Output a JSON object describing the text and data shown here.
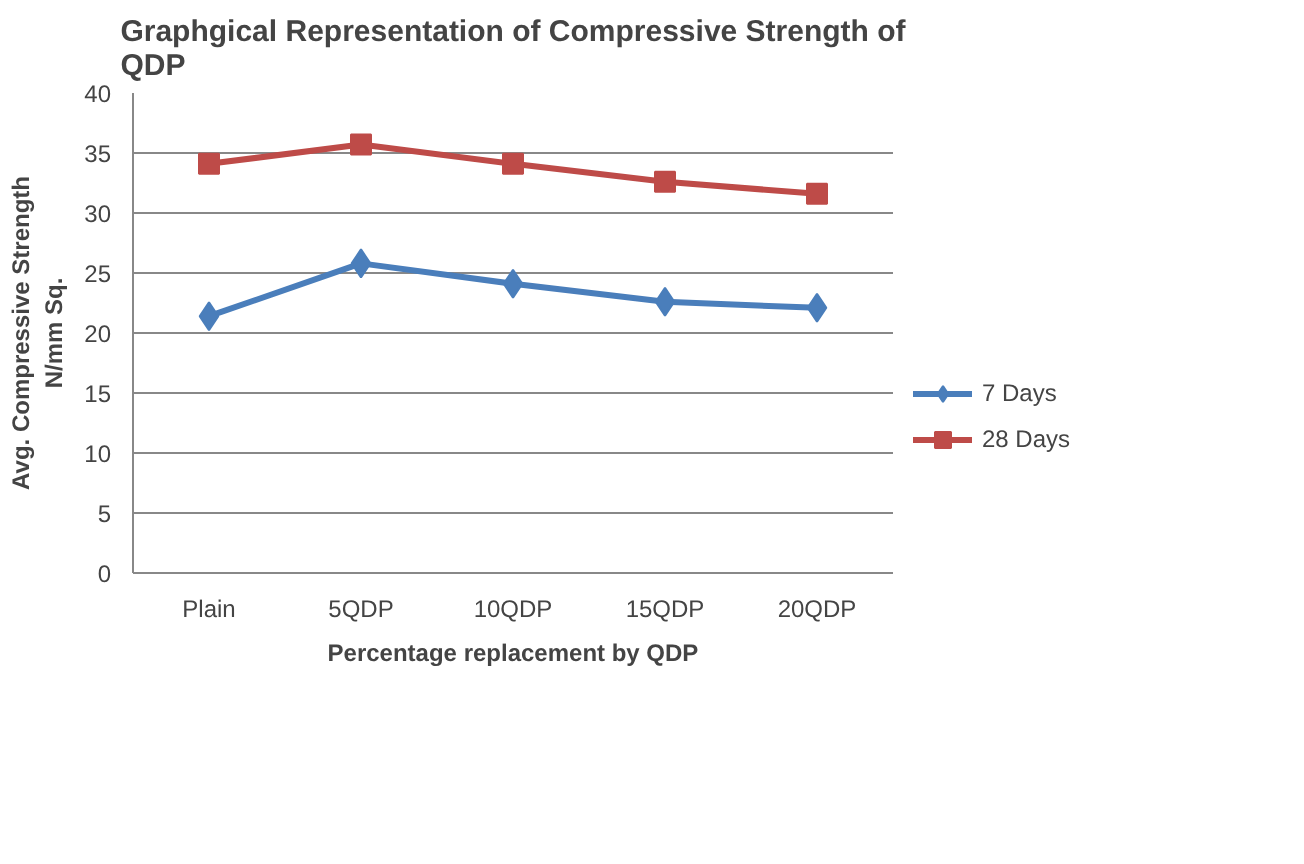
{
  "chart_data": {
    "type": "line",
    "title": "Graphgical Representation of Compressive Strength of\nQDP",
    "xlabel": "Percentage replacement by QDP",
    "ylabel": "Avg. Compressive Strength\nN/mm Sq.",
    "categories": [
      "Plain",
      "5QDP",
      "10QDP",
      "15QDP",
      "20QDP"
    ],
    "series": [
      {
        "name": "7 Days",
        "color": "#4a7ebb",
        "marker": "diamond",
        "values": [
          21.4,
          25.8,
          24.1,
          22.6,
          22.1
        ]
      },
      {
        "name": "28 Days",
        "color": "#be4b48",
        "marker": "square",
        "values": [
          34.1,
          35.7,
          34.1,
          32.6,
          31.6
        ]
      }
    ],
    "ylim": [
      0,
      40
    ],
    "yticks": [
      0,
      5,
      10,
      15,
      20,
      25,
      30,
      35,
      40
    ],
    "grid": "y",
    "legend": "right"
  }
}
